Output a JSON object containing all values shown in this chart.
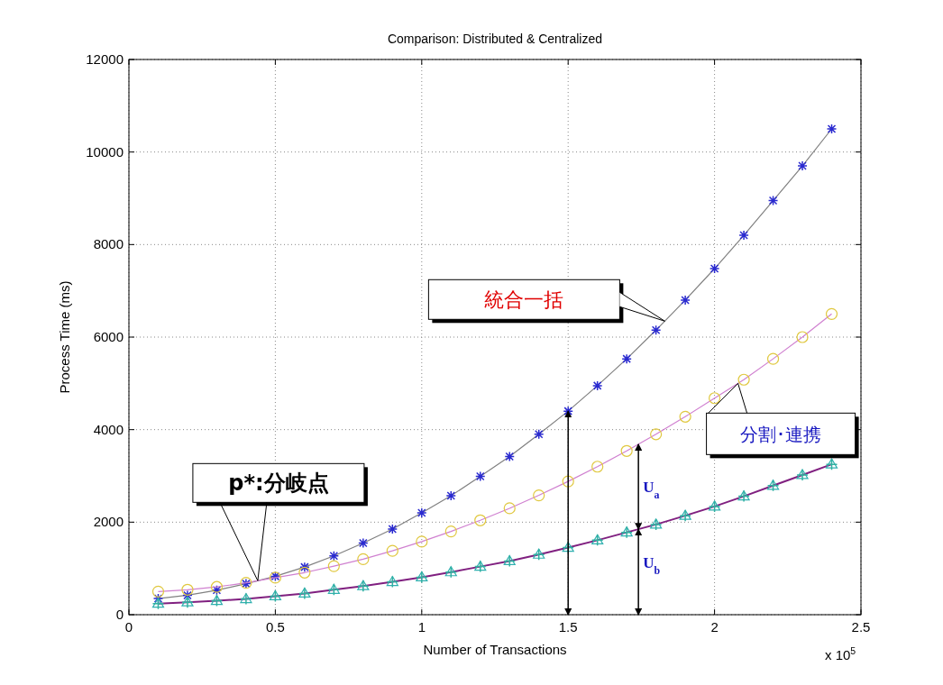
{
  "chart_data": {
    "type": "line",
    "title": "Comparison: Distributed & Centralized",
    "xlabel": "Number of Transactions",
    "ylabel": "Process Time (ms)",
    "x": [
      0.1,
      0.2,
      0.3,
      0.4,
      0.5,
      0.6,
      0.7,
      0.8,
      0.9,
      1.0,
      1.1,
      1.2,
      1.3,
      1.4,
      1.5,
      1.6,
      1.7,
      1.8,
      1.9,
      2.0,
      2.1,
      2.2,
      2.3,
      2.4
    ],
    "series": [
      {
        "color": "#2a2ad0",
        "marker": "cross",
        "values": [
          350,
          420,
          530,
          670,
          830,
          1030,
          1270,
          1550,
          1850,
          2200,
          2570,
          2990,
          3420,
          3900,
          4400,
          4950,
          5530,
          6150,
          6800,
          7480,
          8200,
          8950,
          9700,
          10500
        ]
      },
      {
        "color": "#e0c840",
        "marker": "circle",
        "values": [
          500,
          540,
          600,
          690,
          800,
          910,
          1050,
          1200,
          1380,
          1580,
          1800,
          2040,
          2300,
          2580,
          2880,
          3200,
          3540,
          3900,
          4280,
          4680,
          5080,
          5530,
          6000,
          6500
        ]
      },
      {
        "color": "#30b0b0",
        "marker": "triangle",
        "values": [
          240,
          270,
          300,
          340,
          400,
          460,
          540,
          620,
          710,
          810,
          920,
          1040,
          1160,
          1300,
          1450,
          1610,
          1780,
          1950,
          2140,
          2340,
          2560,
          2790,
          3020,
          3250
        ]
      },
      {
        "type": "scatter",
        "color": "#30b0a0",
        "marker": "cross",
        "values": [
          240,
          270,
          300,
          340,
          400,
          460,
          540,
          620,
          710,
          810,
          920,
          1040,
          1160,
          1300,
          1450,
          1610,
          1780,
          1950,
          2140,
          2340,
          2560,
          2790,
          3020,
          3250
        ]
      }
    ],
    "xlim": [
      0,
      2.5
    ],
    "xticks": [
      0,
      0.5,
      1,
      1.5,
      2,
      2.5
    ],
    "ylim": [
      0,
      12000
    ],
    "yticks": [
      0,
      2000,
      4000,
      6000,
      8000,
      10000,
      12000
    ],
    "grid": true,
    "ref_lines": [
      {
        "axis": "x",
        "value": 1.5
      },
      {
        "axis": "x",
        "value": 1.74
      }
    ],
    "annotations": [
      "統合一括",
      {
        "text": "分割･連携",
        "x": 2.08,
        "y": 5000
      },
      "p*:分岐点",
      "U$_{a}$",
      "U$_{b}$",
      "x 10$^{5}$"
    ]
  }
}
